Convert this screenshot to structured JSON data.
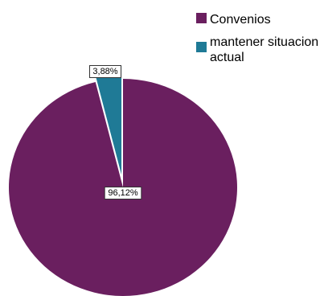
{
  "chart_data": {
    "type": "pie",
    "title": "",
    "categories": [
      "Convenios",
      "mantener situacion actual"
    ],
    "values": [
      96.12,
      3.88
    ],
    "data_labels": [
      "96,12%",
      "3,88%"
    ],
    "colors": [
      "#6a1f5f",
      "#1f7a96"
    ],
    "exploded": [
      false,
      true
    ],
    "legend": {
      "position": "top-right",
      "entries": [
        {
          "label": "Convenios",
          "color": "#6a1f5f"
        },
        {
          "label": "mantener situacion",
          "label_line2": "actual",
          "color": "#1f7a96"
        }
      ]
    }
  }
}
